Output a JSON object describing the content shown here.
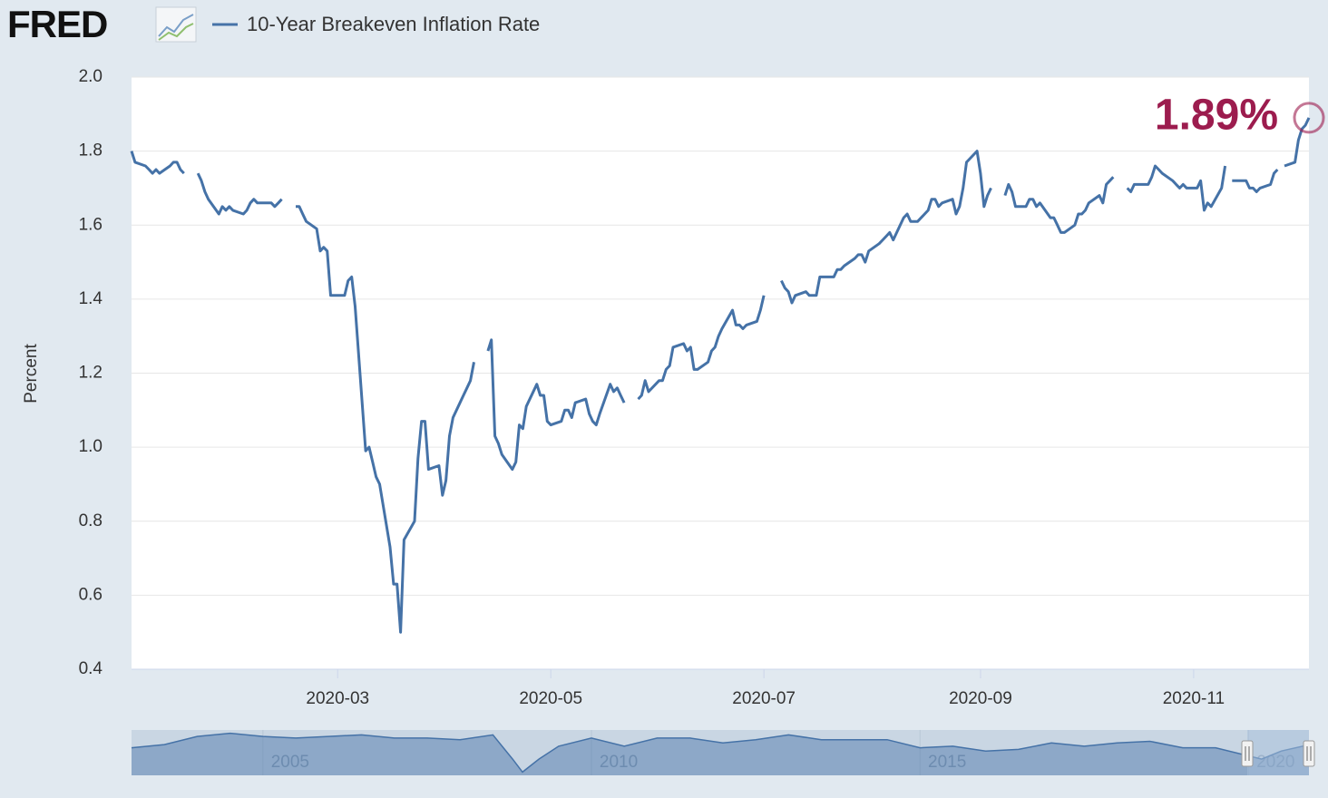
{
  "header": {
    "logo": "FRED"
  },
  "chart_data": [
    {
      "type": "line",
      "y_label": "Percent",
      "annotation": {
        "text": "1.89%",
        "color": "#9c1c4e"
      },
      "xlim": [
        "2020-01-02",
        "2020-12-04"
      ],
      "xticks": [
        "2020-03",
        "2020-05",
        "2020-07",
        "2020-09",
        "2020-11"
      ],
      "ylim": [
        0.4,
        2.0
      ],
      "yticks": [
        {
          "value": 0.4,
          "label": "0.4"
        },
        {
          "value": 0.6,
          "label": "0.6"
        },
        {
          "value": 0.8,
          "label": "0.8"
        },
        {
          "value": 1.0,
          "label": "1.0"
        },
        {
          "value": 1.2,
          "label": "1.2"
        },
        {
          "value": 1.4,
          "label": "1.4"
        },
        {
          "value": 1.6,
          "label": "1.6"
        },
        {
          "value": 1.8,
          "label": "1.8"
        },
        {
          "value": 2.0,
          "label": "2.0"
        }
      ],
      "grid": true,
      "x": [
        "2020-01-02",
        "2020-01-03",
        "2020-01-06",
        "2020-01-07",
        "2020-01-08",
        "2020-01-09",
        "2020-01-10",
        "2020-01-13",
        "2020-01-14",
        "2020-01-15",
        "2020-01-16",
        "2020-01-17",
        "2020-01-20",
        "2020-01-21",
        "2020-01-22",
        "2020-01-23",
        "2020-01-24",
        "2020-01-27",
        "2020-01-28",
        "2020-01-29",
        "2020-01-30",
        "2020-01-31",
        "2020-02-03",
        "2020-02-04",
        "2020-02-05",
        "2020-02-06",
        "2020-02-07",
        "2020-02-10",
        "2020-02-11",
        "2020-02-12",
        "2020-02-13",
        "2020-02-14",
        "2020-02-17",
        "2020-02-18",
        "2020-02-19",
        "2020-02-20",
        "2020-02-21",
        "2020-02-24",
        "2020-02-25",
        "2020-02-26",
        "2020-02-27",
        "2020-02-28",
        "2020-03-02",
        "2020-03-03",
        "2020-03-04",
        "2020-03-05",
        "2020-03-06",
        "2020-03-09",
        "2020-03-10",
        "2020-03-11",
        "2020-03-12",
        "2020-03-13",
        "2020-03-16",
        "2020-03-17",
        "2020-03-18",
        "2020-03-19",
        "2020-03-20",
        "2020-03-23",
        "2020-03-24",
        "2020-03-25",
        "2020-03-26",
        "2020-03-27",
        "2020-03-30",
        "2020-03-31",
        "2020-04-01",
        "2020-04-02",
        "2020-04-03",
        "2020-04-06",
        "2020-04-07",
        "2020-04-08",
        "2020-04-09",
        "2020-04-10",
        "2020-04-13",
        "2020-04-14",
        "2020-04-15",
        "2020-04-16",
        "2020-04-17",
        "2020-04-20",
        "2020-04-21",
        "2020-04-22",
        "2020-04-23",
        "2020-04-24",
        "2020-04-27",
        "2020-04-28",
        "2020-04-29",
        "2020-04-30",
        "2020-05-01",
        "2020-05-04",
        "2020-05-05",
        "2020-05-06",
        "2020-05-07",
        "2020-05-08",
        "2020-05-11",
        "2020-05-12",
        "2020-05-13",
        "2020-05-14",
        "2020-05-15",
        "2020-05-18",
        "2020-05-19",
        "2020-05-20",
        "2020-05-21",
        "2020-05-22",
        "2020-05-25",
        "2020-05-26",
        "2020-05-27",
        "2020-05-28",
        "2020-05-29",
        "2020-06-01",
        "2020-06-02",
        "2020-06-03",
        "2020-06-04",
        "2020-06-05",
        "2020-06-08",
        "2020-06-09",
        "2020-06-10",
        "2020-06-11",
        "2020-06-12",
        "2020-06-15",
        "2020-06-16",
        "2020-06-17",
        "2020-06-18",
        "2020-06-19",
        "2020-06-22",
        "2020-06-23",
        "2020-06-24",
        "2020-06-25",
        "2020-06-26",
        "2020-06-29",
        "2020-06-30",
        "2020-07-01",
        "2020-07-02",
        "2020-07-06",
        "2020-07-07",
        "2020-07-08",
        "2020-07-09",
        "2020-07-10",
        "2020-07-13",
        "2020-07-14",
        "2020-07-15",
        "2020-07-16",
        "2020-07-17",
        "2020-07-20",
        "2020-07-21",
        "2020-07-22",
        "2020-07-23",
        "2020-07-24",
        "2020-07-27",
        "2020-07-28",
        "2020-07-29",
        "2020-07-30",
        "2020-07-31",
        "2020-08-03",
        "2020-08-04",
        "2020-08-05",
        "2020-08-06",
        "2020-08-07",
        "2020-08-10",
        "2020-08-11",
        "2020-08-12",
        "2020-08-13",
        "2020-08-14",
        "2020-08-17",
        "2020-08-18",
        "2020-08-19",
        "2020-08-20",
        "2020-08-21",
        "2020-08-24",
        "2020-08-25",
        "2020-08-26",
        "2020-08-27",
        "2020-08-28",
        "2020-08-31",
        "2020-09-01",
        "2020-09-02",
        "2020-09-03",
        "2020-09-04",
        "2020-09-07",
        "2020-09-08",
        "2020-09-09",
        "2020-09-10",
        "2020-09-11",
        "2020-09-14",
        "2020-09-15",
        "2020-09-16",
        "2020-09-17",
        "2020-09-18",
        "2020-09-21",
        "2020-09-22",
        "2020-09-23",
        "2020-09-24",
        "2020-09-25",
        "2020-09-28",
        "2020-09-29",
        "2020-09-30",
        "2020-10-01",
        "2020-10-02",
        "2020-10-05",
        "2020-10-06",
        "2020-10-07",
        "2020-10-08",
        "2020-10-09",
        "2020-10-12",
        "2020-10-13",
        "2020-10-14",
        "2020-10-15",
        "2020-10-16",
        "2020-10-19",
        "2020-10-20",
        "2020-10-21",
        "2020-10-22",
        "2020-10-23",
        "2020-10-26",
        "2020-10-27",
        "2020-10-28",
        "2020-10-29",
        "2020-10-30",
        "2020-11-02",
        "2020-11-03",
        "2020-11-04",
        "2020-11-05",
        "2020-11-06",
        "2020-11-09",
        "2020-11-10",
        "2020-11-11",
        "2020-11-12",
        "2020-11-13",
        "2020-11-16",
        "2020-11-17",
        "2020-11-18",
        "2020-11-19",
        "2020-11-20",
        "2020-11-23",
        "2020-11-24",
        "2020-11-25",
        "2020-11-26",
        "2020-11-27",
        "2020-11-30",
        "2020-12-01",
        "2020-12-02",
        "2020-12-03",
        "2020-12-04"
      ],
      "series": [
        {
          "name": "10-Year Breakeven Inflation Rate",
          "color": "#4572a7",
          "values": [
            1.8,
            1.77,
            1.76,
            1.75,
            1.74,
            1.75,
            1.74,
            1.76,
            1.77,
            1.77,
            1.75,
            1.74,
            null,
            1.74,
            1.72,
            1.69,
            1.67,
            1.63,
            1.65,
            1.64,
            1.65,
            1.64,
            1.63,
            1.64,
            1.66,
            1.67,
            1.66,
            1.66,
            1.66,
            1.65,
            1.66,
            1.67,
            null,
            1.65,
            1.65,
            1.63,
            1.61,
            1.59,
            1.53,
            1.54,
            1.53,
            1.41,
            1.41,
            1.41,
            1.45,
            1.46,
            1.38,
            0.99,
            1.0,
            0.96,
            0.92,
            0.9,
            0.73,
            0.63,
            0.63,
            0.5,
            0.75,
            0.8,
            0.97,
            1.07,
            1.07,
            0.94,
            0.95,
            0.87,
            0.91,
            1.03,
            1.08,
            1.14,
            1.16,
            1.18,
            1.23,
            null,
            1.26,
            1.29,
            1.03,
            1.01,
            0.98,
            0.94,
            0.96,
            1.06,
            1.05,
            1.11,
            1.17,
            1.14,
            1.14,
            1.07,
            1.06,
            1.07,
            1.1,
            1.1,
            1.08,
            1.12,
            1.13,
            1.09,
            1.07,
            1.06,
            1.09,
            1.17,
            1.15,
            1.16,
            1.14,
            1.12,
            null,
            1.13,
            1.14,
            1.18,
            1.15,
            1.18,
            1.18,
            1.21,
            1.22,
            1.27,
            1.28,
            1.26,
            1.27,
            1.21,
            1.21,
            1.23,
            1.26,
            1.27,
            1.3,
            1.32,
            1.37,
            1.33,
            1.33,
            1.32,
            1.33,
            1.34,
            1.37,
            1.41,
            null,
            1.45,
            1.43,
            1.42,
            1.39,
            1.41,
            1.42,
            1.41,
            1.41,
            1.41,
            1.46,
            1.46,
            1.46,
            1.48,
            1.48,
            1.49,
            1.51,
            1.52,
            1.52,
            1.5,
            1.53,
            1.55,
            1.56,
            1.57,
            1.58,
            1.56,
            1.62,
            1.63,
            1.61,
            1.61,
            1.61,
            1.64,
            1.67,
            1.67,
            1.65,
            1.66,
            1.67,
            1.63,
            1.65,
            1.7,
            1.77,
            1.8,
            1.74,
            1.65,
            1.68,
            1.7,
            null,
            1.68,
            1.71,
            1.69,
            1.65,
            1.65,
            1.67,
            1.67,
            1.65,
            1.66,
            1.62,
            1.62,
            1.6,
            1.58,
            1.58,
            1.6,
            1.63,
            1.63,
            1.64,
            1.66,
            1.68,
            1.66,
            1.71,
            1.72,
            1.73,
            null,
            1.7,
            1.69,
            1.71,
            1.71,
            1.71,
            1.73,
            1.76,
            1.75,
            1.74,
            1.72,
            1.71,
            1.7,
            1.71,
            1.7,
            1.7,
            1.72,
            1.64,
            1.66,
            1.65,
            1.7,
            1.76,
            null,
            1.72,
            1.72,
            1.72,
            1.7,
            1.7,
            1.69,
            1.7,
            1.71,
            1.74,
            1.75,
            null,
            1.76,
            1.77,
            1.83,
            1.86,
            1.87,
            1.89
          ]
        }
      ]
    },
    {
      "type": "area",
      "xlim": [
        2003,
        2020.92
      ],
      "ylim": [
        0,
        2.8
      ],
      "xticks": [
        2005,
        2010,
        2015,
        2020
      ],
      "x": [
        2003.0,
        2003.5,
        2004.0,
        2004.5,
        2005.0,
        2005.5,
        2006.0,
        2006.5,
        2007.0,
        2007.5,
        2008.0,
        2008.5,
        2008.8,
        2008.95,
        2009.2,
        2009.5,
        2010.0,
        2010.5,
        2011.0,
        2011.5,
        2012.0,
        2012.5,
        2013.0,
        2013.5,
        2014.0,
        2014.5,
        2015.0,
        2015.5,
        2016.0,
        2016.5,
        2017.0,
        2017.5,
        2018.0,
        2018.5,
        2019.0,
        2019.5,
        2020.2,
        2020.5,
        2020.92
      ],
      "series": [
        {
          "name": "10-Year Breakeven Inflation Rate",
          "color": "#4572a7",
          "values": [
            1.7,
            1.9,
            2.4,
            2.6,
            2.4,
            2.3,
            2.4,
            2.5,
            2.3,
            2.3,
            2.2,
            2.5,
            1.0,
            0.2,
            1.0,
            1.8,
            2.3,
            1.8,
            2.3,
            2.3,
            2.0,
            2.2,
            2.5,
            2.2,
            2.2,
            2.2,
            1.7,
            1.8,
            1.5,
            1.6,
            2.0,
            1.8,
            2.0,
            2.1,
            1.7,
            1.7,
            1.0,
            1.5,
            1.89
          ]
        }
      ]
    }
  ]
}
